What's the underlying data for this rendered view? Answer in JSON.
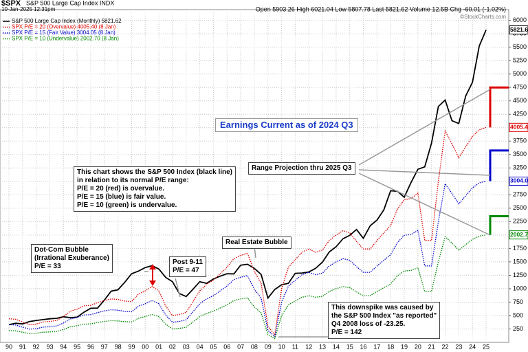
{
  "header": {
    "symbol": "$SPX",
    "name": "S&P 500 Large Cap Index INDX",
    "timestamp": "10-Jan-2025 12:31pm",
    "quote": "Open 5903.26  High 6021.04  Low 5807.78  Last 5821.62  Volume 12.5B  Chg -60.01 (-1.02%)",
    "credit": "©StockCharts.com"
  },
  "chart_data": {
    "type": "line",
    "grid": true,
    "legend": "top-left",
    "categories": [
      "90",
      null,
      "91",
      null,
      "92",
      null,
      "93",
      null,
      "94",
      null,
      "95",
      null,
      "96",
      null,
      "97",
      null,
      "98",
      null,
      "99",
      null,
      "00",
      null,
      "01",
      null,
      "02",
      null,
      "03",
      null,
      "04",
      null,
      "05",
      null,
      "06",
      null,
      "07",
      null,
      "08",
      null,
      "09",
      null,
      "10",
      null,
      "11",
      null,
      "12",
      null,
      "13",
      null,
      "14",
      null,
      "15",
      null,
      "16",
      null,
      "17",
      null,
      "18",
      null,
      "19",
      null,
      "20",
      null,
      "21",
      null,
      "22",
      null,
      "23",
      null,
      "24",
      null,
      "25"
    ],
    "ylim": [
      0,
      6200
    ],
    "yticks": [
      250,
      500,
      750,
      1000,
      1250,
      1500,
      1750,
      2000,
      2250,
      2500,
      2750,
      3000,
      3250,
      3500,
      3750,
      4000,
      4250,
      4500,
      4750,
      5000,
      5250,
      5500,
      5750,
      6000
    ],
    "series": [
      {
        "name": "S&P 500 Large Cap Index (Monthly) 5821.62",
        "color": "#000000",
        "style": "solid",
        "end_label": "5821.62",
        "values": [
          330,
          356,
          343,
          387,
          409,
          424,
          439,
          448,
          478,
          458,
          470,
          562,
          636,
          639,
          786,
          954,
          980,
          1120,
          1280,
          1328,
          1394,
          1430,
          1366,
          1211,
          1130,
          911,
          855,
          990,
          1131,
          1101,
          1181,
          1234,
          1280,
          1276,
          1438,
          1455,
          1378,
          1267,
          825,
          987,
          1073,
          1101,
          1286,
          1292,
          1312,
          1379,
          1498,
          1686,
          1782,
          1931,
          1995,
          2104,
          1940,
          2174,
          2279,
          2470,
          2824,
          2816,
          2704,
          2980,
          3226,
          3271,
          3714,
          4395,
          4516,
          4130,
          4077,
          4589,
          4846,
          5522,
          5821.62
        ]
      },
      {
        "name": "SPX P/E = 20 (Overvalue) 4005.40 (8 Jan)",
        "color": "#dd0000",
        "style": "dotted",
        "end_label": "4005.40",
        "projection": 4750,
        "values": [
          440,
          430,
          380,
          330,
          340,
          380,
          390,
          410,
          480,
          580,
          620,
          680,
          690,
          740,
          780,
          810,
          800,
          770,
          760,
          900,
          960,
          1040,
          960,
          680,
          500,
          520,
          560,
          760,
          960,
          1080,
          1160,
          1280,
          1400,
          1560,
          1620,
          1660,
          1320,
          1100,
          300,
          140,
          1000,
          1400,
          1540,
          1680,
          1740,
          1680,
          1720,
          1900,
          2000,
          2080,
          2040,
          1880,
          1740,
          1740,
          1900,
          2040,
          2180,
          2480,
          2660,
          2680,
          2780,
          1900,
          1900,
          3000,
          3940,
          3700,
          3440,
          3640,
          3840,
          3960,
          4005.4
        ]
      },
      {
        "name": "SPX P/E = 15 (Fair Value) 3004.05 (8 Jan)",
        "color": "#0000cc",
        "style": "dotted",
        "end_label": "3004.05",
        "projection": 3575,
        "values": [
          330,
          322.5,
          285,
          247.5,
          255,
          285,
          292.5,
          307.5,
          360,
          435,
          465,
          510,
          517.5,
          555,
          585,
          607.5,
          600,
          577.5,
          570,
          675,
          720,
          780,
          720,
          510,
          375,
          390,
          420,
          570,
          720,
          810,
          870,
          960,
          1050,
          1170,
          1215,
          1245,
          990,
          825,
          225,
          105,
          750,
          1050,
          1155,
          1260,
          1305,
          1260,
          1290,
          1425,
          1500,
          1560,
          1530,
          1410,
          1305,
          1305,
          1425,
          1530,
          1635,
          1860,
          1995,
          2010,
          2085,
          1425,
          1425,
          2250,
          2955,
          2775,
          2580,
          2730,
          2880,
          2970,
          3004.05
        ]
      },
      {
        "name": "SPX P/E = 10 (Undervalue) 2002.70 (8 Jan)",
        "color": "#008800",
        "style": "dotted",
        "end_label": "2002.70",
        "projection": 2350,
        "values": [
          220,
          215,
          190,
          165,
          170,
          190,
          195,
          205,
          240,
          290,
          310,
          340,
          345,
          370,
          390,
          405,
          400,
          385,
          380,
          450,
          480,
          520,
          480,
          340,
          250,
          260,
          280,
          380,
          480,
          540,
          580,
          640,
          700,
          780,
          810,
          830,
          660,
          550,
          150,
          70,
          500,
          700,
          770,
          840,
          870,
          840,
          860,
          950,
          1000,
          1040,
          1020,
          940,
          870,
          870,
          950,
          1020,
          1090,
          1240,
          1330,
          1340,
          1390,
          950,
          950,
          1500,
          1970,
          1850,
          1720,
          1820,
          1920,
          1980,
          2002.7
        ]
      }
    ]
  },
  "annotations": {
    "earnings": "Earnings Current as of 2024 Q3",
    "projection": "Range Projection thru 2025 Q3",
    "explain": [
      "This chart shows the S&P 500 Index (black line)",
      "in relation to its normal P/E range:",
      "P/E = 20 (red) is overvalue.",
      "P/E = 15 (blue) is fair value.",
      "P/E = 10 (green) is undervalue."
    ],
    "dotcom": [
      "Dot-Com Bubble",
      "(Irrational Exuberance)",
      "P/E = 33"
    ],
    "post911": [
      "Post 9-11",
      "P/E = 47"
    ],
    "realestate": "Real Estate Bubble",
    "downspike": [
      "This downspike was caused by",
      "the S&P 500 Index \"as reported\"",
      "Q4 2008 loss of -23.25.",
      "P/E = 142"
    ]
  }
}
